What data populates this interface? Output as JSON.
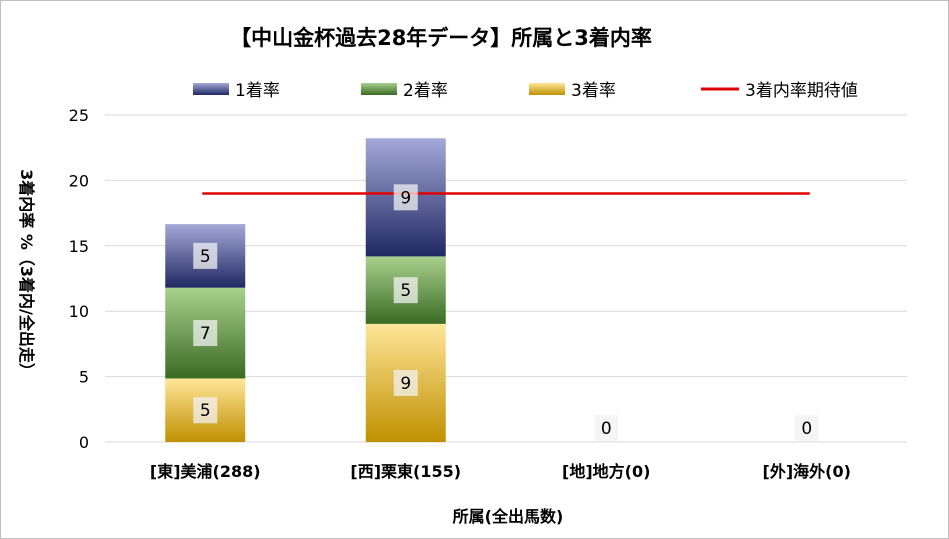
{
  "chart_data": {
    "type": "bar",
    "stacked": true,
    "title": "【中山金杯過去28年データ】所属と3着内率",
    "xlabel": "所属(全出馬数)",
    "ylabel": "3着内率 %（3着内/全出走）",
    "ylim": [
      0,
      25
    ],
    "yticks": [
      0,
      5,
      10,
      15,
      20,
      25
    ],
    "grid": true,
    "legend_position": "top",
    "categories": [
      "[東]美浦(288)",
      "[西]栗東(155)",
      "[地]地方(0)",
      "[外]海外(0)"
    ],
    "series": [
      {
        "name": "3着率",
        "values": [
          4.86,
          9.03,
          0,
          0
        ],
        "labels": [
          "5",
          "9",
          "0",
          "0"
        ],
        "color_top": "#ffe699",
        "color_bottom": "#bf9000"
      },
      {
        "name": "2着率",
        "values": [
          6.94,
          5.16,
          0,
          0
        ],
        "labels": [
          "7",
          "5",
          "",
          ""
        ],
        "color_top": "#a9d18e",
        "color_bottom": "#3a6b23"
      },
      {
        "name": "1着率",
        "values": [
          4.86,
          9.03,
          0,
          0
        ],
        "labels": [
          "5",
          "9",
          "",
          ""
        ],
        "color_top": "#a5a9d8",
        "color_bottom": "#202862"
      }
    ],
    "expected_line": {
      "name": "3着内率期待値",
      "value": 19.0,
      "color": "#e00000"
    }
  }
}
